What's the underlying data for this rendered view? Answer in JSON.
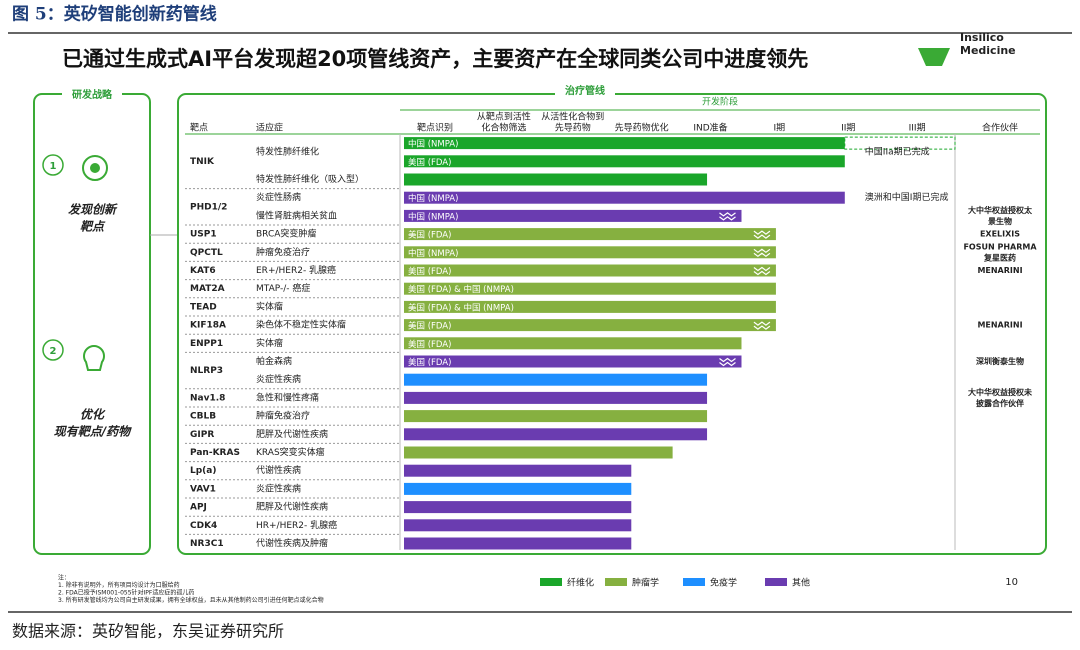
{
  "header": {
    "figure_title": "图 5：英矽智能创新药管线"
  },
  "slide": {
    "title": "已通过生成式AI平台发现超20项管线资产，主要资产在全球同类公司中进度领先",
    "logo": [
      "Insilico",
      "Medicine"
    ],
    "strategy": {
      "heading": "研发战略",
      "items": [
        {
          "number": "1",
          "lines": [
            "发现创新",
            "靶点"
          ]
        },
        {
          "number": "2",
          "lines": [
            "优化",
            "现有靶点/药物"
          ]
        }
      ]
    },
    "pipeline": {
      "heading": "治疗管线",
      "stage_header": "开发阶段",
      "columns": {
        "target": "靶点",
        "indication": "适应症",
        "partner": "合作伙伴"
      },
      "stages": [
        [
          "靶点识别"
        ],
        [
          "从靶点到活性",
          "化合物筛选"
        ],
        [
          "从活性化合物到",
          "先导药物"
        ],
        [
          "先导药物优化"
        ],
        [
          "IND准备"
        ],
        [
          "I期"
        ],
        [
          "II期"
        ],
        [
          "III期"
        ]
      ],
      "xlim": [
        0,
        8
      ],
      "legend": [
        {
          "name": "纤维化",
          "color": "#1aa62a"
        },
        {
          "name": "肿瘤学",
          "color": "#86b040"
        },
        {
          "name": "免疫学",
          "color": "#1e8fff"
        },
        {
          "name": "其他",
          "color": "#6a3cb0"
        }
      ],
      "targets": [
        {
          "name": "TNIK",
          "rows": [
            {
              "indication": "特发性肺纤维化",
              "bars": [
                {
                  "label": "中国 (NMPA)",
                  "value": 6.4,
                  "area": 0,
                  "planned": 8
                },
                {
                  "label": "美国 (FDA)",
                  "value": 6.4,
                  "area": 0
                }
              ],
              "note": "中国IIa期已完成"
            },
            {
              "indication": "特发性肺纤维化（吸入型）",
              "bars": [
                {
                  "value": 4.4,
                  "area": 0
                }
              ]
            }
          ]
        },
        {
          "name": "PHD1/2",
          "rows": [
            {
              "indication": "炎症性肠病",
              "bars": [
                {
                  "label": "中国 (NMPA)",
                  "value": 6.4,
                  "area": 3
                }
              ],
              "note": "澳洲和中国I期已完成"
            },
            {
              "indication": "慢性肾脏病相关贫血",
              "bars": [
                {
                  "label": "中国 (NMPA)",
                  "value": 4.9,
                  "area": 3,
                  "milestone": true
                }
              ],
              "partner": [
                "大中华权益授权太",
                "景生物"
              ]
            }
          ]
        },
        {
          "name": "USP1",
          "rows": [
            {
              "indication": "BRCA突变肿瘤",
              "bars": [
                {
                  "label": "美国 (FDA)",
                  "value": 5.4,
                  "area": 1,
                  "milestone": true
                }
              ],
              "partner": [
                "EXELIXIS"
              ]
            }
          ]
        },
        {
          "name": "QPCTL",
          "rows": [
            {
              "indication": "肿瘤免疫治疗",
              "bars": [
                {
                  "label": "中国 (NMPA)",
                  "value": 5.4,
                  "area": 1,
                  "milestone": true
                }
              ],
              "partner": [
                "FOSUN PHARMA",
                "复星医药"
              ]
            }
          ]
        },
        {
          "name": "KAT6",
          "rows": [
            {
              "indication": "ER+/HER2- 乳腺癌",
              "bars": [
                {
                  "label": "美国 (FDA)",
                  "value": 5.4,
                  "area": 1,
                  "milestone": true
                }
              ],
              "partner": [
                "MENARINI"
              ]
            }
          ]
        },
        {
          "name": "MAT2A",
          "rows": [
            {
              "indication": "MTAP-/- 癌症",
              "bars": [
                {
                  "label": "美国 (FDA) & 中国 (NMPA)",
                  "value": 5.4,
                  "area": 1
                }
              ]
            }
          ]
        },
        {
          "name": "TEAD",
          "rows": [
            {
              "indication": "实体瘤",
              "bars": [
                {
                  "label": "美国 (FDA) & 中国 (NMPA)",
                  "value": 5.4,
                  "area": 1
                }
              ]
            }
          ]
        },
        {
          "name": "KIF18A",
          "rows": [
            {
              "indication": "染色体不稳定性实体瘤",
              "bars": [
                {
                  "label": "美国 (FDA)",
                  "value": 5.4,
                  "area": 1,
                  "milestone": true
                }
              ],
              "partner": [
                "MENARINI"
              ]
            }
          ]
        },
        {
          "name": "ENPP1",
          "rows": [
            {
              "indication": "实体瘤",
              "bars": [
                {
                  "label": "美国 (FDA)",
                  "value": 4.9,
                  "area": 1
                }
              ]
            }
          ]
        },
        {
          "name": "NLRP3",
          "rows": [
            {
              "indication": "帕金森病",
              "bars": [
                {
                  "label": "美国 (FDA)",
                  "value": 4.9,
                  "area": 3,
                  "milestone": true
                }
              ],
              "partner": [
                "深圳衡泰生物"
              ]
            },
            {
              "indication": "炎症性疾病",
              "bars": [
                {
                  "value": 4.4,
                  "area": 2
                }
              ]
            }
          ]
        },
        {
          "name": "Nav1.8",
          "rows": [
            {
              "indication": "急性和慢性疼痛",
              "bars": [
                {
                  "value": 4.4,
                  "area": 3
                }
              ],
              "partner": [
                "大中华权益授权未",
                "披露合作伙伴"
              ]
            }
          ]
        },
        {
          "name": "CBLB",
          "rows": [
            {
              "indication": "肿瘤免疫治疗",
              "bars": [
                {
                  "value": 4.4,
                  "area": 1
                }
              ]
            }
          ]
        },
        {
          "name": "GIPR",
          "rows": [
            {
              "indication": "肥胖及代谢性疾病",
              "bars": [
                {
                  "value": 4.4,
                  "area": 3
                }
              ]
            }
          ]
        },
        {
          "name": "Pan-KRAS",
          "rows": [
            {
              "indication": "KRAS突变实体瘤",
              "bars": [
                {
                  "value": 3.9,
                  "area": 1
                }
              ]
            }
          ]
        },
        {
          "name": "Lp(a)",
          "rows": [
            {
              "indication": "代谢性疾病",
              "bars": [
                {
                  "value": 3.3,
                  "area": 3
                }
              ]
            }
          ]
        },
        {
          "name": "VAV1",
          "rows": [
            {
              "indication": "炎症性疾病",
              "bars": [
                {
                  "value": 3.3,
                  "area": 2
                }
              ]
            }
          ]
        },
        {
          "name": "APJ",
          "rows": [
            {
              "indication": "肥胖及代谢性疾病",
              "bars": [
                {
                  "value": 3.3,
                  "area": 3
                }
              ]
            }
          ]
        },
        {
          "name": "CDK4",
          "rows": [
            {
              "indication": "HR+/HER2- 乳腺癌",
              "bars": [
                {
                  "value": 3.3,
                  "area": 3
                }
              ]
            }
          ]
        },
        {
          "name": "NR3C1",
          "rows": [
            {
              "indication": "代谢性疾病及肿瘤",
              "bars": [
                {
                  "value": 3.3,
                  "area": 3
                }
              ]
            }
          ]
        }
      ]
    },
    "footnotes": [
      "注：",
      "1. 除非有说明外，所有项目均设计为口服给药",
      "2. FDA已授予ISM001-055针对IPF适应症的孤儿药",
      "3. 所有研发管线均为公司自主研发成果，拥有全球权益，且未从其他制药公司引进任何靶点或化合物"
    ],
    "page_number": 10
  },
  "source": "数据来源：英矽智能，东吴证券研究所"
}
